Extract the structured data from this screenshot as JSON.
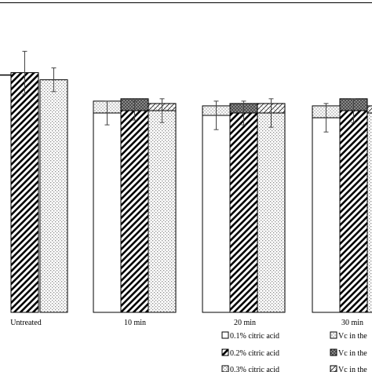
{
  "chart_data": {
    "type": "bar",
    "stacked_segments": true,
    "categories": [
      "Untreated",
      "10 min",
      "20 min",
      "30 min"
    ],
    "series": [
      {
        "name": "0.1% citric acid",
        "pattern": "plain",
        "values": [
          null,
          84,
          83,
          82
        ],
        "error": [
          null,
          5,
          6,
          6
        ]
      },
      {
        "name": "0.2% citric acid",
        "pattern": "diagonal",
        "values": [
          101,
          85,
          84,
          85
        ],
        "error": [
          9,
          4,
          5,
          5
        ]
      },
      {
        "name": "0.3% citric acid",
        "pattern": "dotted",
        "values": [
          98,
          85,
          84,
          84
        ],
        "error": [
          5,
          5,
          6,
          6
        ]
      },
      {
        "name": "Vc in the",
        "pattern": "speckled-cap",
        "values": [
          null,
          5,
          4,
          5
        ],
        "applies_to": "0.1% citric acid"
      },
      {
        "name": "Vc in the",
        "pattern": "crosshatch-cap",
        "values": [
          null,
          5,
          4,
          5
        ],
        "applies_to": "0.2% citric acid"
      },
      {
        "name": "Vc in the",
        "pattern": "zigzag-cap",
        "values": [
          null,
          3,
          4,
          3
        ],
        "applies_to": "0.3% citric acid"
      }
    ],
    "reference_line": 100,
    "ylim": [
      0,
      125
    ],
    "grid": false,
    "legend_position": "bottom"
  }
}
